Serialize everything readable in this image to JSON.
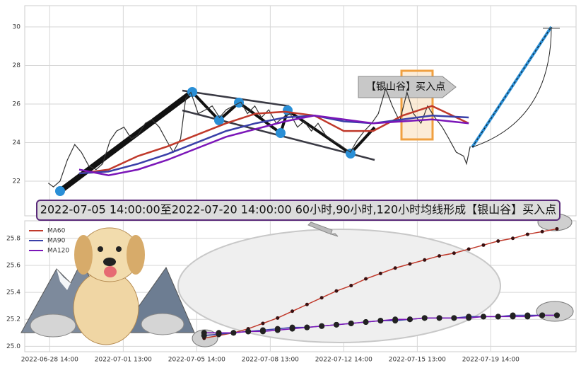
{
  "chart_data": [
    {
      "type": "line",
      "xlim": [
        -3.4,
        71.6
      ],
      "ylim": [
        20.2,
        31.1
      ],
      "yticks": [
        22,
        24,
        26,
        28,
        30
      ],
      "grid": true,
      "annotations": [
        "【银山谷】买入点",
        "2022-07-05 14:00:00至2022-07-20 14:00:00 60小时,90小时,120小时均线形成【银山谷】买入点"
      ],
      "series": [
        {
          "color": "#333333",
          "x": [
            -0.2,
            0.5,
            1.4,
            2.4,
            3.4,
            4.3,
            5.3,
            6.3,
            7.2,
            8.2,
            9.1,
            10.1,
            11.1,
            12.0,
            13.0,
            13.9,
            14.9,
            15.9,
            16.8,
            17.8,
            18.5,
            19.2,
            20.2,
            21.2,
            22.1,
            23.1,
            24.0,
            25.0,
            26.0,
            26.9,
            27.9,
            28.8,
            29.8,
            30.8,
            31.7,
            32.7,
            33.7,
            34.6,
            35.6,
            36.5,
            37.5,
            38.5,
            39.4,
            40.9,
            41.8,
            42.8,
            43.8,
            44.7,
            45.7,
            46.6,
            47.6,
            48.6,
            49.5,
            50.5,
            51.4,
            52.4,
            53.4,
            54.3,
            55.3,
            56.3,
            56.7,
            57.2
          ],
          "values": [
            21.9,
            21.7,
            22.0,
            23.1,
            23.9,
            23.5,
            22.8,
            22.6,
            22.9,
            24.1,
            24.6,
            24.8,
            24.2,
            24.4,
            25.0,
            25.2,
            24.8,
            24.1,
            23.5,
            24.2,
            26.3,
            26.6,
            25.5,
            25.7,
            25.9,
            25.3,
            25.7,
            25.9,
            26.1,
            25.5,
            25.9,
            25.3,
            25.7,
            25.0,
            25.3,
            25.5,
            24.8,
            25.1,
            24.6,
            25.0,
            24.4,
            24.1,
            23.9,
            23.5,
            24.1,
            24.6,
            25.0,
            25.5,
            26.8,
            25.9,
            25.1,
            26.6,
            25.5,
            25.0,
            25.9,
            25.3,
            24.8,
            24.2,
            23.5,
            23.3,
            22.9,
            23.8
          ]
        },
        {
          "color": "#c0392b",
          "x": [
            4,
            8,
            12,
            16,
            20,
            24,
            28,
            32,
            36,
            40,
            44,
            48,
            52,
            57
          ],
          "values": [
            22.4,
            22.6,
            23.3,
            23.8,
            24.4,
            25.0,
            25.5,
            25.6,
            25.4,
            24.6,
            24.6,
            25.4,
            25.9,
            25.0
          ]
        },
        {
          "color": "#3a3fa8",
          "x": [
            4,
            8,
            12,
            16,
            20,
            24,
            28,
            32,
            36,
            40,
            44,
            48,
            52,
            57
          ],
          "values": [
            22.4,
            22.5,
            22.9,
            23.4,
            24.0,
            24.6,
            25.0,
            25.3,
            25.4,
            25.1,
            25.0,
            25.2,
            25.4,
            25.3
          ]
        },
        {
          "color": "#7b16b8",
          "x": [
            4,
            8,
            12,
            16,
            20,
            24,
            28,
            32,
            36,
            40,
            44,
            48,
            52,
            57
          ],
          "values": [
            22.6,
            22.3,
            22.6,
            23.1,
            23.7,
            24.3,
            24.7,
            25.1,
            25.4,
            25.2,
            25.0,
            25.1,
            25.2,
            25.0
          ]
        }
      ]
    },
    {
      "type": "line",
      "xlim": [
        -3.4,
        71.6
      ],
      "ylim": [
        24.96,
        25.93
      ],
      "yticks": [
        {
          "value": 25,
          "label": "25.0"
        },
        25.2,
        25.4,
        25.6,
        25.8
      ],
      "xticks": [
        {
          "value": 0,
          "label": "2022-06-28 14:00"
        },
        {
          "value": 10,
          "label": "2022-07-01 13:00"
        },
        {
          "value": 20,
          "label": "2022-07-05 14:00"
        },
        {
          "value": 30,
          "label": "2022-07-08 13:00"
        },
        {
          "value": 40,
          "label": "2022-07-12 14:00"
        },
        {
          "value": 50,
          "label": "2022-07-15 13:00"
        },
        {
          "value": 60,
          "label": "2022-07-19 14:00"
        }
      ],
      "grid": true,
      "legend": "upper left",
      "x": [
        21,
        23,
        25,
        27,
        29,
        31,
        33,
        35,
        37,
        39,
        41,
        43,
        45,
        47,
        49,
        51,
        53,
        55,
        57,
        59,
        61,
        63,
        65,
        67,
        69
      ],
      "series": [
        {
          "name": "MA60",
          "color": "#c0392b",
          "marker_color": "#3a1010",
          "values": [
            25.06,
            25.08,
            25.1,
            25.13,
            25.17,
            25.21,
            25.26,
            25.31,
            25.36,
            25.41,
            25.45,
            25.5,
            25.54,
            25.58,
            25.61,
            25.64,
            25.67,
            25.69,
            25.72,
            25.75,
            25.78,
            25.8,
            25.83,
            25.85,
            25.87
          ]
        },
        {
          "name": "MA90",
          "color": "#3a3fa8",
          "marker_color": "#222222",
          "values": [
            25.08,
            25.09,
            25.1,
            25.11,
            25.12,
            25.13,
            25.14,
            25.14,
            25.15,
            25.16,
            25.17,
            25.18,
            25.19,
            25.19,
            25.2,
            25.21,
            25.21,
            25.21,
            25.22,
            25.22,
            25.22,
            25.23,
            25.23,
            25.23,
            25.23
          ]
        },
        {
          "name": "MA120",
          "color": "#7b16b8",
          "marker_color": "#222222",
          "values": [
            25.1,
            25.1,
            25.1,
            25.11,
            25.11,
            25.12,
            25.13,
            25.14,
            25.15,
            25.16,
            25.17,
            25.18,
            25.19,
            25.2,
            25.2,
            25.21,
            25.21,
            25.21,
            25.21,
            25.22,
            25.22,
            25.22,
            25.22,
            25.23,
            25.23
          ]
        }
      ]
    }
  ]
}
